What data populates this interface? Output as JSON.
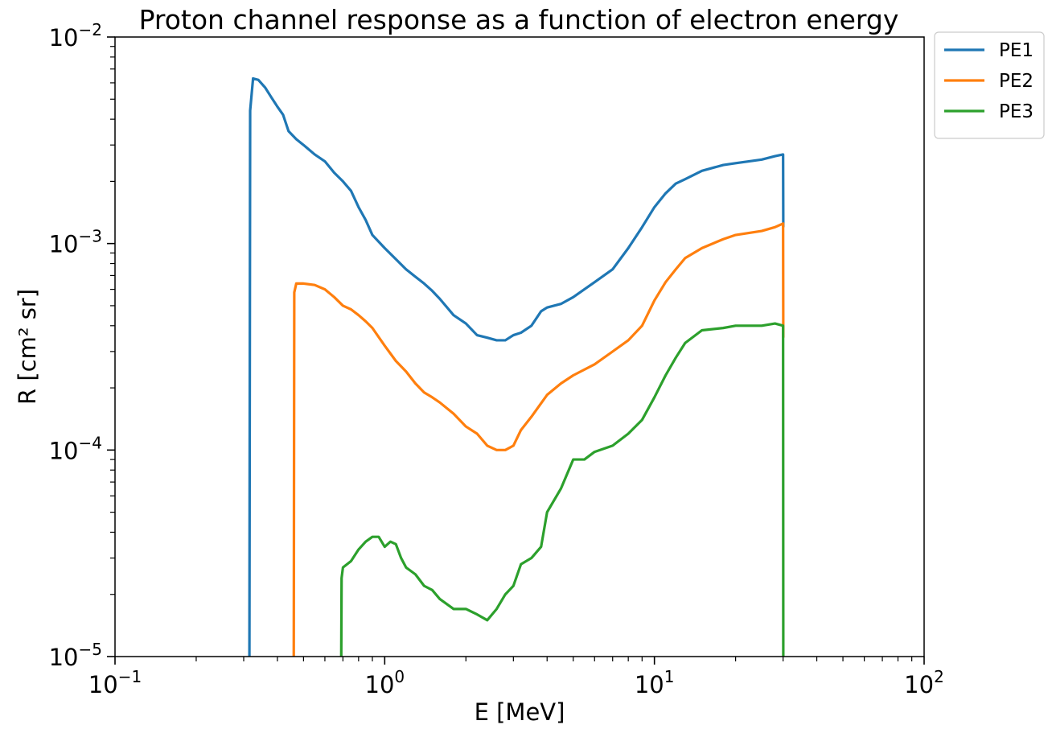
{
  "chart_data": {
    "type": "line",
    "title": "Proton channel response as a function of electron energy",
    "xlabel": "E [MeV]",
    "ylabel": "R [cm² sr]",
    "xscale": "log",
    "yscale": "log",
    "xlim": [
      0.1,
      100
    ],
    "ylim": [
      1e-05,
      0.01
    ],
    "grid": false,
    "legend_position": "outside-top-right",
    "x_ticks": [
      {
        "base": "10",
        "exp": "−1"
      },
      {
        "base": "10",
        "exp": "0"
      },
      {
        "base": "10",
        "exp": "1"
      },
      {
        "base": "10",
        "exp": "2"
      }
    ],
    "y_ticks": [
      {
        "base": "10",
        "exp": "−5"
      },
      {
        "base": "10",
        "exp": "−4"
      },
      {
        "base": "10",
        "exp": "−3"
      },
      {
        "base": "10",
        "exp": "−2"
      }
    ],
    "series": [
      {
        "name": "PE1",
        "color": "#1f77b4",
        "x": [
          0.315,
          0.317,
          0.325,
          0.34,
          0.36,
          0.38,
          0.4,
          0.42,
          0.44,
          0.47,
          0.5,
          0.55,
          0.6,
          0.65,
          0.7,
          0.75,
          0.8,
          0.85,
          0.9,
          1.0,
          1.1,
          1.2,
          1.3,
          1.4,
          1.5,
          1.6,
          1.8,
          2.0,
          2.2,
          2.4,
          2.6,
          2.8,
          3.0,
          3.2,
          3.5,
          3.8,
          4.0,
          4.5,
          5.0,
          5.5,
          6.0,
          7.0,
          8.0,
          9.0,
          10,
          11,
          12,
          13,
          15,
          18,
          20,
          25,
          28,
          30,
          30.05
        ],
        "y": [
          1e-05,
          0.0044,
          0.0063,
          0.0062,
          0.0057,
          0.0051,
          0.0046,
          0.0042,
          0.0035,
          0.0032,
          0.003,
          0.0027,
          0.0025,
          0.0022,
          0.002,
          0.0018,
          0.0015,
          0.0013,
          0.0011,
          0.00095,
          0.00084,
          0.00075,
          0.00069,
          0.00064,
          0.00059,
          0.00054,
          0.00045,
          0.00041,
          0.00036,
          0.00035,
          0.00034,
          0.00034,
          0.00036,
          0.00037,
          0.0004,
          0.00047,
          0.00049,
          0.00051,
          0.00055,
          0.0006,
          0.00065,
          0.00075,
          0.00095,
          0.0012,
          0.0015,
          0.00175,
          0.00195,
          0.00205,
          0.00225,
          0.0024,
          0.00245,
          0.00255,
          0.00265,
          0.0027,
          0.0012
        ]
      },
      {
        "name": "PE2",
        "color": "#ff7f0e",
        "x": [
          0.46,
          0.462,
          0.47,
          0.5,
          0.55,
          0.6,
          0.65,
          0.7,
          0.75,
          0.8,
          0.85,
          0.9,
          1.0,
          1.1,
          1.2,
          1.3,
          1.4,
          1.5,
          1.6,
          1.8,
          2.0,
          2.2,
          2.4,
          2.6,
          2.8,
          3.0,
          3.2,
          3.5,
          4.0,
          4.5,
          5.0,
          6.0,
          7.0,
          8.0,
          9.0,
          10,
          11,
          12,
          13,
          15,
          18,
          20,
          25,
          28,
          30,
          30.05
        ],
        "y": [
          1e-05,
          0.00058,
          0.00064,
          0.00064,
          0.00063,
          0.0006,
          0.00055,
          0.0005,
          0.00048,
          0.00045,
          0.00042,
          0.00039,
          0.00032,
          0.00027,
          0.00024,
          0.00021,
          0.00019,
          0.00018,
          0.00017,
          0.00015,
          0.00013,
          0.00012,
          0.000105,
          0.0001,
          0.0001,
          0.000105,
          0.000125,
          0.000145,
          0.000185,
          0.00021,
          0.00023,
          0.00026,
          0.0003,
          0.00034,
          0.0004,
          0.00053,
          0.00065,
          0.00075,
          0.00085,
          0.00095,
          0.00105,
          0.0011,
          0.00115,
          0.0012,
          0.00125,
          0.00035
        ]
      },
      {
        "name": "PE3",
        "color": "#2ca02c",
        "x": [
          0.69,
          0.692,
          0.7,
          0.75,
          0.8,
          0.85,
          0.9,
          0.95,
          1.0,
          1.05,
          1.1,
          1.15,
          1.2,
          1.3,
          1.4,
          1.5,
          1.6,
          1.8,
          2.0,
          2.2,
          2.4,
          2.6,
          2.8,
          3.0,
          3.2,
          3.5,
          3.8,
          4.0,
          4.5,
          5.0,
          5.5,
          6.0,
          7.0,
          8.0,
          9.0,
          10,
          11,
          12,
          13,
          15,
          18,
          20,
          25,
          28,
          30,
          30.05
        ],
        "y": [
          1e-05,
          2.4e-05,
          2.7e-05,
          2.9e-05,
          3.3e-05,
          3.6e-05,
          3.8e-05,
          3.8e-05,
          3.4e-05,
          3.6e-05,
          3.5e-05,
          3e-05,
          2.7e-05,
          2.5e-05,
          2.2e-05,
          2.1e-05,
          1.9e-05,
          1.7e-05,
          1.7e-05,
          1.6e-05,
          1.5e-05,
          1.7e-05,
          2e-05,
          2.2e-05,
          2.8e-05,
          3e-05,
          3.4e-05,
          5e-05,
          6.5e-05,
          9e-05,
          9e-05,
          9.8e-05,
          0.000105,
          0.00012,
          0.00014,
          0.00018,
          0.00023,
          0.00028,
          0.00033,
          0.00038,
          0.00039,
          0.0004,
          0.0004,
          0.00041,
          0.0004,
          1e-05
        ]
      }
    ]
  }
}
